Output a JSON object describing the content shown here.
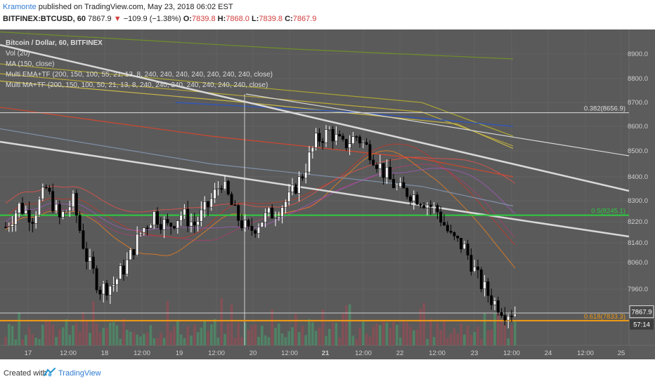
{
  "header": {
    "author": "Kramonte",
    "published_text": "published on TradingView.com, May 23, 2018 06:02 EST",
    "symbol": "BITFINEX:BTCUSD, 60",
    "last": "7867.9",
    "arrow": "▼",
    "change": "−109.9 (−1.38%)",
    "o_label": "O:",
    "o": "7839.8",
    "h_label": "H:",
    "h": "7868.0",
    "l_label": "L:",
    "l": "7839.8",
    "c_label": "C:",
    "c": "7867.9"
  },
  "legend": [
    "Bitcoin / Dollar, 60, BITFINEX",
    "Vol (20)",
    "MA (150, close)",
    "Multi EMA+TF (200, 150, 100, 55, 21, 13, 8, 240, 240, 240, 240, 240, 240, 240, close)",
    "Multi MA+TF (200, 150, 100, 50, 21, 13, 8, 240, 240, 240, 240, 240, 240, 240, close)"
  ],
  "footer": {
    "created_with": "Created with",
    "brand": "TradingView"
  },
  "colors": {
    "background": "#5a5a5a",
    "up": "#ffffff",
    "down": "#000000",
    "fib_050": "#2ecc40",
    "fib_0618": "#f39c12",
    "fib_0382": "#dddddd",
    "trendline": "#d8d8d8"
  },
  "chart_data": {
    "type": "candlestick",
    "x_tick_labels": [
      "17",
      "12:00",
      "18",
      "12:00",
      "19",
      "12:00",
      "20",
      "12:00",
      "21",
      "12:00",
      "22",
      "12:00",
      "23",
      "12:00",
      "24",
      "12:00",
      "25"
    ],
    "y_tick_labels": [
      "8900.0",
      "8800.0",
      "8700.0",
      "8600.0",
      "8500.0",
      "8400.0",
      "8300.0",
      "8220.0",
      "8140.0",
      "8060.0",
      "7960.0"
    ],
    "ylim": [
      7790,
      8960
    ],
    "fib_levels": [
      {
        "label": "0.382(8656.9)",
        "value": 8656.9
      },
      {
        "label": "0.5(8245.1)",
        "value": 8245.1
      },
      {
        "label": "0.618(7833.3)",
        "value": 7833.3
      }
    ],
    "last_price_tag": "7867.9",
    "countdown_tag": "57:14",
    "close_path": [
      [
        0,
        8200
      ],
      [
        4,
        8280
      ],
      [
        8,
        8240
      ],
      [
        12,
        8350
      ],
      [
        16,
        8230
      ],
      [
        20,
        8300
      ],
      [
        24,
        8080
      ],
      [
        28,
        7960
      ],
      [
        32,
        7980
      ],
      [
        36,
        8060
      ],
      [
        40,
        8180
      ],
      [
        44,
        8250
      ],
      [
        48,
        8200
      ],
      [
        52,
        8250
      ],
      [
        56,
        8210
      ],
      [
        60,
        8280
      ],
      [
        64,
        8380
      ],
      [
        68,
        8250
      ],
      [
        72,
        8180
      ],
      [
        76,
        8230
      ],
      [
        80,
        8260
      ],
      [
        84,
        8310
      ],
      [
        88,
        8410
      ],
      [
        92,
        8540
      ],
      [
        96,
        8580
      ],
      [
        100,
        8520
      ],
      [
        104,
        8560
      ],
      [
        108,
        8500
      ],
      [
        112,
        8420
      ],
      [
        116,
        8350
      ],
      [
        120,
        8330
      ],
      [
        124,
        8300
      ],
      [
        128,
        8260
      ],
      [
        132,
        8160
      ],
      [
        136,
        8120
      ],
      [
        140,
        8000
      ],
      [
        144,
        7920
      ],
      [
        148,
        7870
      ],
      [
        151,
        7868
      ]
    ]
  }
}
